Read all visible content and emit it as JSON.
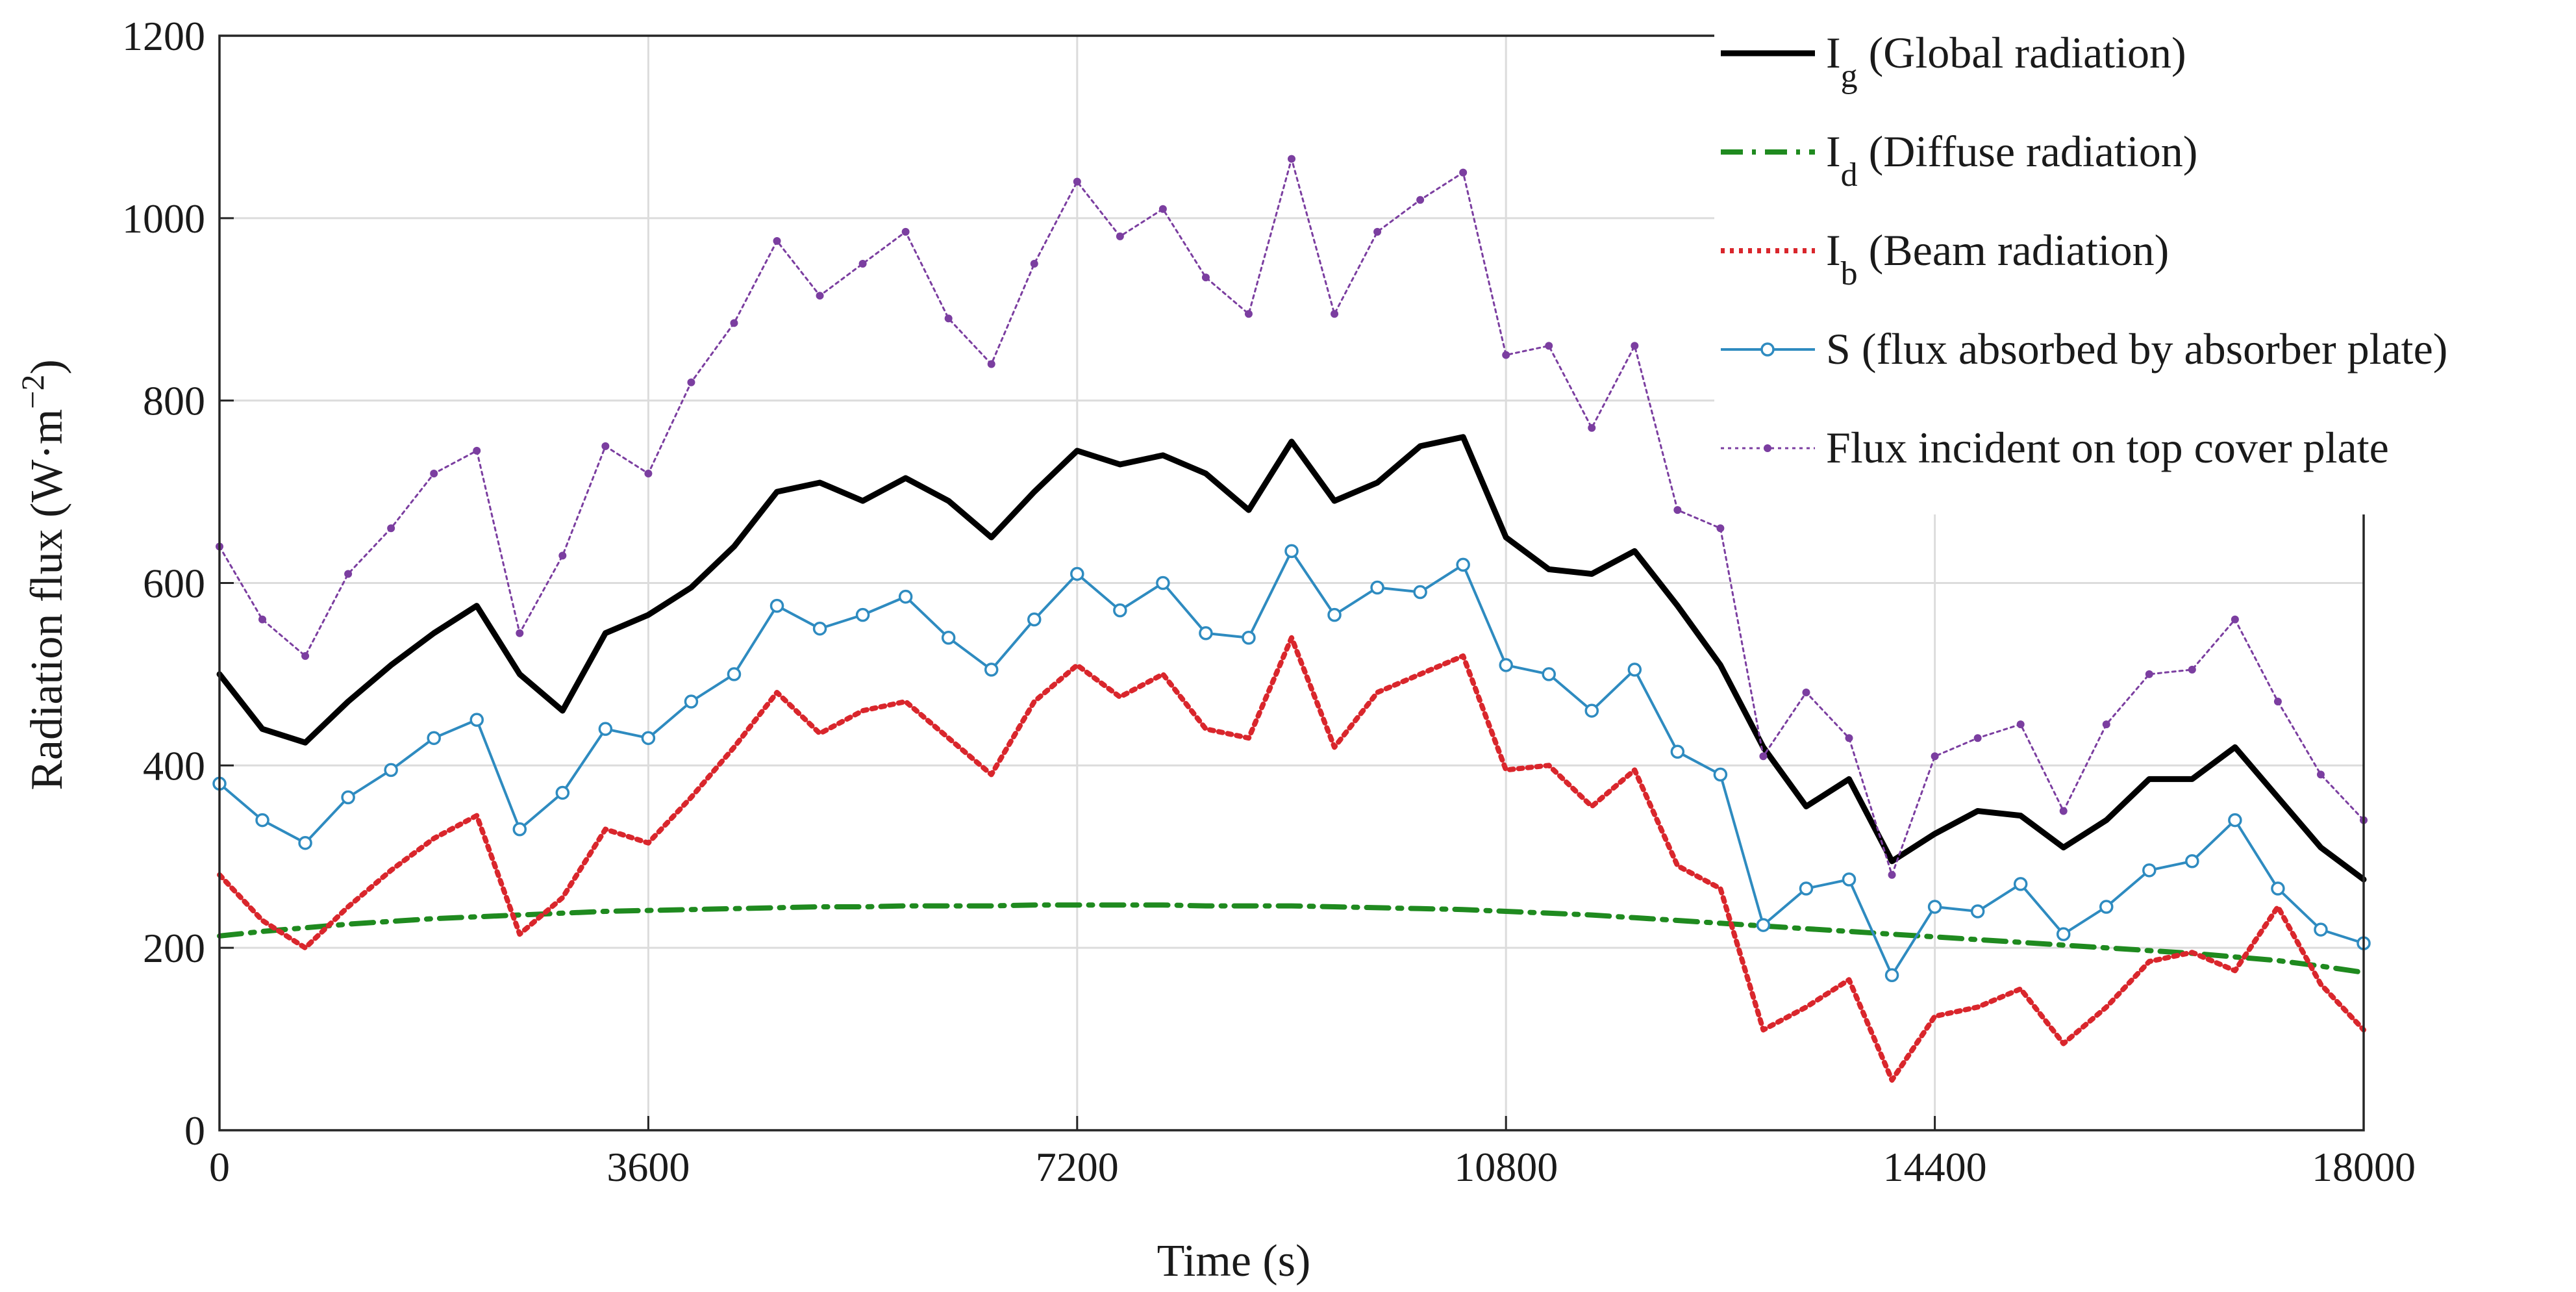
{
  "chart_data": {
    "type": "line",
    "xlabel": "Time (s)",
    "ylabel": "Radiation flux (W·m",
    "ylabel_unit_exp": "−2",
    "ylabel_close": ")",
    "xlim": [
      0,
      18000
    ],
    "ylim": [
      0,
      1200
    ],
    "xticks": [
      0,
      3600,
      7200,
      10800,
      14400,
      18000
    ],
    "yticks": [
      0,
      200,
      400,
      600,
      800,
      1000,
      1200
    ],
    "x": [
      0,
      360,
      720,
      1080,
      1440,
      1800,
      2160,
      2520,
      2880,
      3240,
      3600,
      3960,
      4320,
      4680,
      5040,
      5400,
      5760,
      6120,
      6480,
      6840,
      7200,
      7560,
      7920,
      8280,
      8640,
      9000,
      9360,
      9720,
      10080,
      10440,
      10800,
      11160,
      11520,
      11880,
      12240,
      12600,
      12960,
      13320,
      13680,
      14040,
      14400,
      14760,
      15120,
      15480,
      15840,
      16200,
      16560,
      16920,
      17280,
      17640,
      18000
    ],
    "grid": true,
    "legend_position": "top-right",
    "series": [
      {
        "name": "Global radiation",
        "label_main": "I",
        "label_sub": "g",
        "label_rest": " (Global radiation)",
        "color": "#000000",
        "style": "solid",
        "values": [
          500,
          440,
          425,
          470,
          510,
          545,
          575,
          500,
          460,
          545,
          565,
          595,
          640,
          700,
          710,
          690,
          715,
          690,
          650,
          700,
          745,
          730,
          740,
          720,
          680,
          755,
          690,
          710,
          750,
          760,
          650,
          615,
          610,
          635,
          575,
          510,
          420,
          355,
          385,
          295,
          325,
          350,
          345,
          310,
          340,
          385,
          385,
          420,
          365,
          310,
          275
        ]
      },
      {
        "name": "Diffuse radiation",
        "label_main": "I",
        "label_sub": "d",
        "label_rest": " (Diffuse radiation)",
        "color": "#1f8a1f",
        "style": "dashdot",
        "values": [
          213,
          218,
          222,
          226,
          229,
          232,
          234,
          236,
          238,
          240,
          241,
          242,
          243,
          244,
          245,
          245,
          246,
          246,
          246,
          247,
          247,
          247,
          247,
          246,
          246,
          246,
          245,
          244,
          243,
          242,
          240,
          238,
          236,
          233,
          230,
          227,
          224,
          221,
          218,
          215,
          212,
          209,
          206,
          203,
          200,
          197,
          194,
          190,
          186,
          180,
          173
        ]
      },
      {
        "name": "Beam radiation",
        "label_main": "I",
        "label_sub": "b",
        "label_rest": " (Beam radiation)",
        "color": "#d9262c",
        "style": "dotted",
        "values": [
          280,
          230,
          200,
          245,
          285,
          320,
          345,
          215,
          255,
          330,
          315,
          365,
          420,
          480,
          435,
          460,
          470,
          430,
          390,
          470,
          510,
          475,
          500,
          440,
          430,
          540,
          420,
          480,
          500,
          520,
          395,
          400,
          355,
          395,
          290,
          265,
          110,
          135,
          165,
          55,
          125,
          135,
          155,
          95,
          135,
          185,
          195,
          175,
          245,
          160,
          110
        ]
      },
      {
        "name": "flux absorbed by absorber plate",
        "label_main": "S",
        "label_sub": "",
        "label_rest": " (flux absorbed by absorber plate)",
        "color": "#2e8bc0",
        "style": "solid-marker-circle",
        "values": [
          380,
          340,
          315,
          365,
          395,
          430,
          450,
          330,
          370,
          440,
          430,
          470,
          500,
          575,
          550,
          565,
          585,
          540,
          505,
          560,
          610,
          570,
          600,
          545,
          540,
          635,
          565,
          595,
          590,
          620,
          510,
          500,
          460,
          505,
          415,
          390,
          225,
          265,
          275,
          170,
          245,
          240,
          270,
          215,
          245,
          285,
          295,
          340,
          265,
          220,
          205
        ]
      },
      {
        "name": "Flux incident on top cover plate",
        "label_main": "Flux incident on top cover plate",
        "label_sub": "",
        "label_rest": "",
        "color": "#7b3ea0",
        "style": "dotted-marker-dot",
        "values": [
          640,
          560,
          520,
          610,
          660,
          720,
          745,
          545,
          630,
          750,
          720,
          820,
          885,
          975,
          915,
          950,
          985,
          890,
          840,
          950,
          1040,
          980,
          1010,
          935,
          895,
          1065,
          895,
          985,
          1020,
          1050,
          850,
          860,
          770,
          860,
          680,
          660,
          410,
          480,
          430,
          280,
          410,
          430,
          445,
          350,
          445,
          500,
          505,
          560,
          470,
          390,
          340
        ]
      }
    ]
  }
}
